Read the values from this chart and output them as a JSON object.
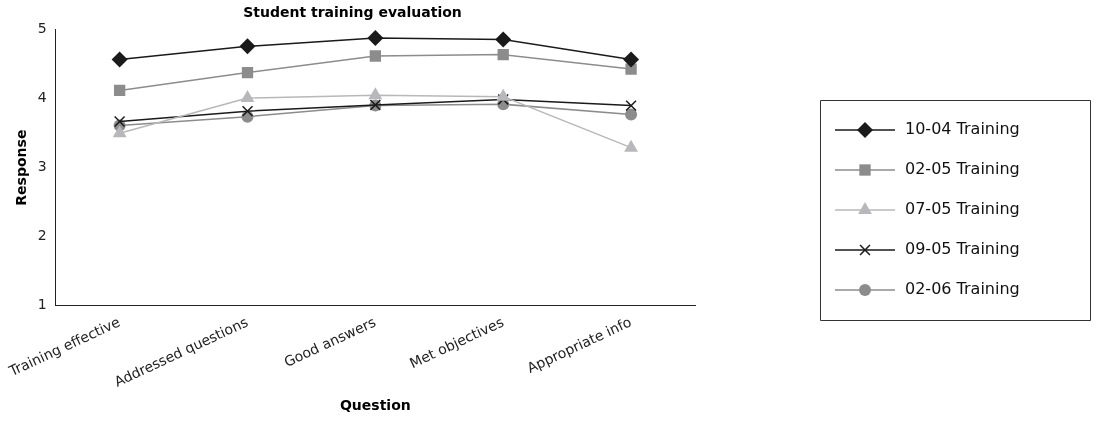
{
  "chart_data": {
    "type": "line",
    "title": "Student training evaluation",
    "xlabel": "Question",
    "ylabel": "Response",
    "categories": [
      "Training effective",
      "Addressed questions",
      "Good answers",
      "Met objectives",
      "Appropriate info"
    ],
    "ylim": [
      1,
      5
    ],
    "yticks": [
      1,
      2,
      3,
      4,
      5
    ],
    "grid": false,
    "legend": "right",
    "series": [
      {
        "name": "10-04 Training",
        "color": "#1a1a1a",
        "marker": "diamond",
        "values": [
          4.57,
          4.76,
          4.88,
          4.86,
          4.57
        ]
      },
      {
        "name": "02-05 Training",
        "color": "#8c8c8c",
        "marker": "square",
        "values": [
          4.12,
          4.38,
          4.62,
          4.64,
          4.43
        ]
      },
      {
        "name": "07-05 Training",
        "color": "#b8b8bc",
        "marker": "triangle",
        "values": [
          3.5,
          4.01,
          4.05,
          4.03,
          3.29
        ]
      },
      {
        "name": "09-05 Training",
        "color": "#1a1a1a",
        "marker": "cross",
        "values": [
          3.67,
          3.82,
          3.91,
          3.99,
          3.9
        ]
      },
      {
        "name": "02-06 Training",
        "color": "#8c8c8c",
        "marker": "circle",
        "values": [
          3.61,
          3.74,
          3.9,
          3.92,
          3.77
        ]
      }
    ]
  }
}
